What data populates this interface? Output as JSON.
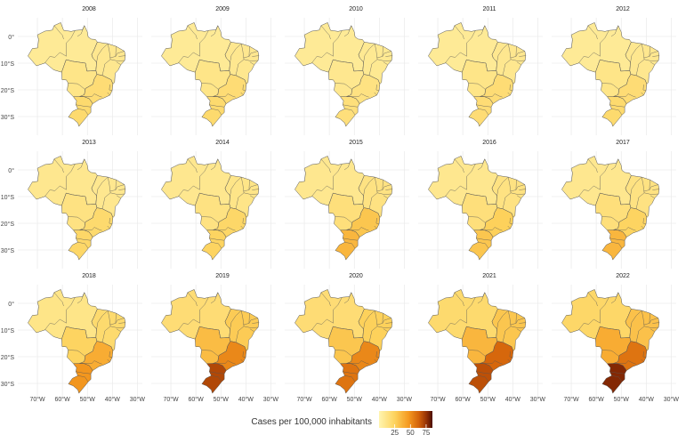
{
  "figure": {
    "type": "choropleth-small-multiples",
    "region": "Brazil by state",
    "years": [
      "2008",
      "2009",
      "2010",
      "2011",
      "2012",
      "2013",
      "2014",
      "2015",
      "2016",
      "2017",
      "2018",
      "2019",
      "2020",
      "2021",
      "2022"
    ],
    "y_axis_labels": [
      "0°",
      "10°S",
      "20°S",
      "30°S"
    ],
    "x_axis_labels": [
      "70°W",
      "60°W",
      "50°W",
      "40°W",
      "30°W"
    ],
    "legend": {
      "title": "Cases per 100,000 inhabitants",
      "ticks": [
        "25",
        "50",
        "75"
      ],
      "range": [
        0,
        85
      ],
      "colors": [
        "#fff5b0",
        "#fdd25c",
        "#f59a20",
        "#d2610a",
        "#8f2d04",
        "#4a0f02"
      ]
    },
    "regional_intensity_by_year": {
      "_regions": [
        "north",
        "northeast",
        "center-west",
        "southeast",
        "south"
      ],
      "2008": [
        8,
        10,
        12,
        18,
        20
      ],
      "2009": [
        8,
        10,
        12,
        18,
        20
      ],
      "2010": [
        8,
        9,
        10,
        14,
        16
      ],
      "2011": [
        8,
        10,
        12,
        18,
        18
      ],
      "2012": [
        8,
        10,
        12,
        18,
        20
      ],
      "2013": [
        10,
        10,
        14,
        20,
        22
      ],
      "2014": [
        10,
        12,
        14,
        22,
        24
      ],
      "2015": [
        10,
        14,
        16,
        30,
        36
      ],
      "2016": [
        10,
        14,
        16,
        26,
        30
      ],
      "2017": [
        10,
        14,
        16,
        24,
        36
      ],
      "2018": [
        12,
        20,
        24,
        40,
        48
      ],
      "2019": [
        18,
        28,
        34,
        52,
        70
      ],
      "2020": [
        18,
        26,
        30,
        52,
        58
      ],
      "2021": [
        20,
        30,
        36,
        62,
        68
      ],
      "2022": [
        22,
        32,
        40,
        58,
        78
      ]
    }
  }
}
